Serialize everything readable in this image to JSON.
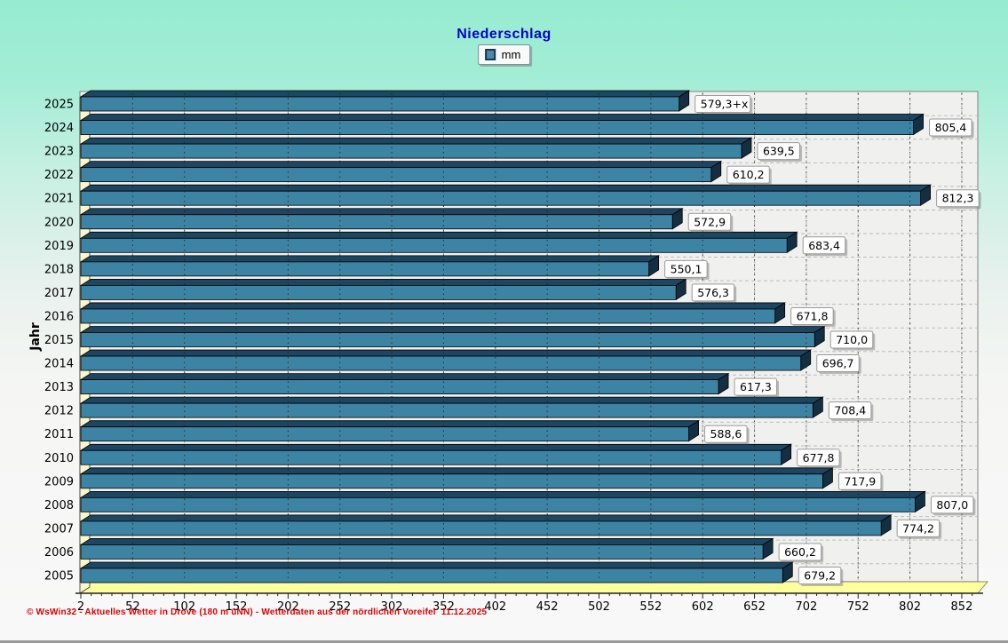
{
  "window": {
    "kind": "weather-software-chart-view"
  },
  "title": "Niederschlag",
  "legend": {
    "label": "mm"
  },
  "footer": {
    "text": "© WsWin32 - Aktuelles Wetter in Drove (180 m üNN) - Wetterdaten aus der nördlichen Voreifel",
    "date": "11.12.2025"
  },
  "chart_data": {
    "type": "bar",
    "orientation": "horizontal",
    "title": "Niederschlag",
    "unit": "mm",
    "ylabel": "Jahr",
    "xlabel": "",
    "legend_position": "top-center",
    "grid": true,
    "categories": [
      "2025",
      "2024",
      "2023",
      "2022",
      "2021",
      "2020",
      "2019",
      "2018",
      "2017",
      "2016",
      "2015",
      "2014",
      "2013",
      "2012",
      "2011",
      "2010",
      "2009",
      "2008",
      "2007",
      "2006",
      "2005"
    ],
    "values": [
      579.3,
      805.4,
      639.5,
      610.2,
      812.3,
      572.9,
      683.4,
      550.1,
      576.3,
      671.8,
      710.0,
      696.7,
      617.3,
      708.4,
      588.6,
      677.8,
      717.9,
      807.0,
      774.2,
      660.2,
      679.2
    ],
    "value_labels": [
      "579,3+x",
      "805,4",
      "639,5",
      "610,2",
      "812,3",
      "572,9",
      "683,4",
      "550,1",
      "576,3",
      "671,8",
      "710,0",
      "696,7",
      "617,3",
      "708,4",
      "588,6",
      "677,8",
      "717,9",
      "807,0",
      "774,2",
      "660,2",
      "679,2"
    ],
    "x_ticks": [
      2,
      52,
      102,
      152,
      202,
      252,
      302,
      352,
      402,
      452,
      502,
      552,
      602,
      652,
      702,
      752,
      802,
      852
    ],
    "x_minor_step": 10,
    "xlim": [
      2,
      868
    ],
    "colors": {
      "bar_front": "#3d83a3",
      "bar_top": "#1c4662",
      "bar_side": "#142e42",
      "bar_outline": "#000000",
      "plot_bg": "#f0f0ee",
      "plot_border": "#808080",
      "grid_major": "#b0b0b0",
      "grid_row": "#bdbdbd",
      "grid_on_bar": "#1a1a1a",
      "floor": "#feff9e",
      "wall": "#fcf6cc",
      "value_box_bg": "#ffffff",
      "value_box_border": "#999999",
      "axis": "#222222",
      "text": "#000000",
      "title": "#0000cd",
      "footer": "#dd0000"
    }
  }
}
